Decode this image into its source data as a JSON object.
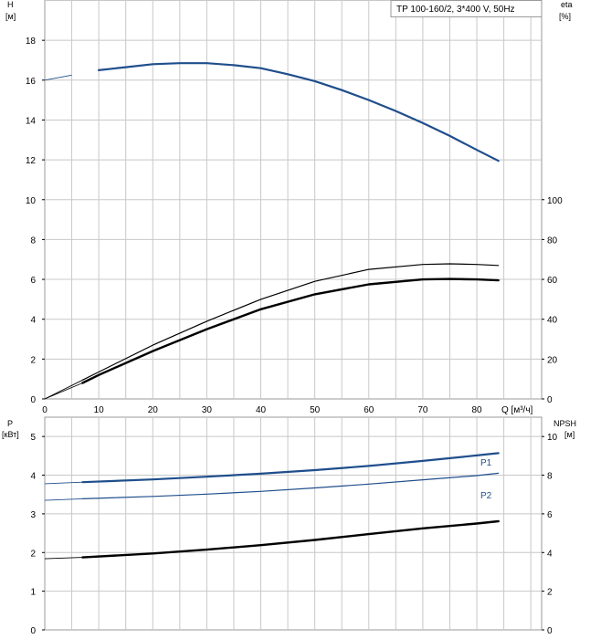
{
  "title": "TP 100-160/2, 3*400 V, 50Hz",
  "colors": {
    "blue": "#1f4e8c",
    "black": "#000000",
    "grid": "#c8c8c8",
    "frame": "#9a9a9a"
  },
  "chart_data": [
    {
      "type": "line",
      "panel": "top",
      "x_label": "Q [м³/ч]",
      "x_ticks": [
        0,
        10,
        20,
        30,
        40,
        50,
        60,
        70,
        80
      ],
      "xlim": [
        0,
        92
      ],
      "left_axis": {
        "label_line1": "H",
        "label_line2": "[м]",
        "ylim": [
          0,
          20
        ],
        "tick_labels": [
          "0",
          "2",
          "4",
          "6",
          "8",
          "10",
          "12",
          "14",
          "16",
          "18"
        ]
      },
      "right_axis": {
        "label_line1": "eta",
        "label_line2": "[%]",
        "ylim": [
          0,
          200
        ],
        "tick_labels": [
          "0",
          "20",
          "40",
          "60",
          "80",
          "100"
        ]
      },
      "grid": true,
      "series": [
        {
          "axis": "left",
          "color": "#1f4e8c",
          "width": 2.2,
          "x": [
            0,
            5,
            10,
            15,
            20,
            25,
            30,
            35,
            40,
            45,
            50,
            55,
            60,
            65,
            70,
            75,
            80,
            84
          ],
          "y": [
            16.0,
            16.25,
            16.5,
            16.65,
            16.8,
            16.85,
            16.85,
            16.75,
            16.6,
            16.3,
            15.95,
            15.5,
            15.0,
            14.45,
            13.85,
            13.2,
            12.5,
            11.95
          ],
          "dashed_until": 7
        },
        {
          "axis": "right",
          "color": "#000000",
          "width": 1.2,
          "x": [
            0,
            7,
            10,
            20,
            30,
            40,
            50,
            60,
            70,
            75,
            80,
            84
          ],
          "y": [
            0,
            9.5,
            13.5,
            27,
            39,
            50,
            59,
            65,
            67.5,
            67.8,
            67.5,
            67
          ],
          "dashed_until": 7
        },
        {
          "axis": "right",
          "color": "#000000",
          "width": 2.4,
          "x": [
            0,
            7,
            10,
            20,
            30,
            40,
            50,
            60,
            70,
            75,
            80,
            84
          ],
          "y": [
            0,
            8,
            12,
            24,
            35,
            45,
            52.5,
            57.5,
            60,
            60.2,
            60,
            59.5
          ],
          "dashed_until": 7
        }
      ]
    },
    {
      "type": "line",
      "panel": "bottom",
      "xlim": [
        0,
        92
      ],
      "x_ticks": [
        0,
        10,
        20,
        30,
        40,
        50,
        60,
        70,
        80
      ],
      "left_axis": {
        "label_line1": "P",
        "label_line2": "[кВт]",
        "ylim": [
          0,
          5.5
        ],
        "tick_labels": [
          "0",
          "1",
          "2",
          "3",
          "4",
          "5"
        ]
      },
      "right_axis": {
        "label_line1": "NPSH",
        "label_line2": "[м]",
        "ylim": [
          0,
          11
        ],
        "tick_labels": [
          "0",
          "2",
          "4",
          "6",
          "8",
          "10"
        ]
      },
      "grid": true,
      "series": [
        {
          "name": "P1",
          "axis": "left",
          "color": "#1f4e8c",
          "width": 2.2,
          "x": [
            0,
            7,
            20,
            30,
            40,
            50,
            60,
            70,
            80,
            84
          ],
          "y": [
            3.78,
            3.82,
            3.89,
            3.96,
            4.04,
            4.13,
            4.24,
            4.37,
            4.51,
            4.57
          ],
          "dashed_until": 7
        },
        {
          "name": "P2",
          "axis": "left",
          "color": "#1f4e8c",
          "width": 1.2,
          "x": [
            0,
            7,
            20,
            30,
            40,
            50,
            60,
            70,
            80,
            84
          ],
          "y": [
            3.35,
            3.39,
            3.45,
            3.51,
            3.58,
            3.67,
            3.77,
            3.88,
            3.99,
            4.05
          ],
          "dashed_until": 7
        },
        {
          "axis": "right",
          "color": "#000000",
          "width": 2.4,
          "x": [
            0,
            7,
            20,
            30,
            40,
            50,
            60,
            70,
            80,
            84
          ],
          "y": [
            3.68,
            3.75,
            3.95,
            4.15,
            4.38,
            4.65,
            4.95,
            5.25,
            5.5,
            5.62
          ],
          "dashed_until": 7
        }
      ]
    }
  ]
}
